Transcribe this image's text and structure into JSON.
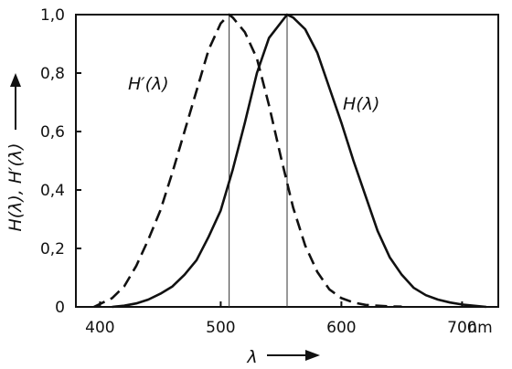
{
  "chart_data": {
    "type": "line",
    "xlabel": "λ",
    "ylabel": "H(λ), H′(λ)",
    "x_unit": "nm",
    "xlim": [
      380,
      730
    ],
    "ylim": [
      0,
      1.0
    ],
    "x_ticks": [
      400,
      500,
      600,
      700
    ],
    "y_ticks": [
      0,
      0.2,
      0.4,
      0.6,
      0.8,
      1.0
    ],
    "x_tick_labels": [
      "400",
      "500",
      "600",
      "700"
    ],
    "y_tick_labels": [
      "0",
      "0,2",
      "0,4",
      "0,6",
      "0,8",
      "1,0"
    ],
    "reference_lines_x": [
      507,
      555
    ],
    "grid": false,
    "series": [
      {
        "name": "H′(λ)",
        "style": "dashed",
        "color": "#111111",
        "x": [
          395,
          400,
          410,
          420,
          430,
          440,
          450,
          460,
          470,
          480,
          490,
          500,
          507,
          510,
          520,
          530,
          540,
          550,
          560,
          570,
          580,
          590,
          600,
          610,
          620,
          630,
          640,
          650
        ],
        "y": [
          0.0,
          0.01,
          0.03,
          0.07,
          0.14,
          0.23,
          0.33,
          0.46,
          0.6,
          0.74,
          0.88,
          0.97,
          1.0,
          0.99,
          0.94,
          0.85,
          0.69,
          0.51,
          0.34,
          0.21,
          0.12,
          0.06,
          0.03,
          0.015,
          0.007,
          0.004,
          0.002,
          0.001
        ]
      },
      {
        "name": "H(λ)",
        "style": "solid",
        "color": "#111111",
        "x": [
          410,
          420,
          430,
          440,
          450,
          460,
          470,
          480,
          490,
          500,
          510,
          520,
          530,
          540,
          555,
          560,
          570,
          580,
          590,
          600,
          610,
          620,
          630,
          640,
          650,
          660,
          670,
          680,
          690,
          700,
          720
        ],
        "y": [
          0.0,
          0.004,
          0.012,
          0.025,
          0.045,
          0.07,
          0.11,
          0.16,
          0.24,
          0.33,
          0.47,
          0.63,
          0.8,
          0.92,
          1.0,
          0.99,
          0.95,
          0.87,
          0.75,
          0.63,
          0.5,
          0.38,
          0.26,
          0.17,
          0.11,
          0.065,
          0.04,
          0.025,
          0.015,
          0.008,
          0.0
        ]
      }
    ]
  },
  "labels": {
    "series_dashed": "H′(λ)",
    "series_solid": "H(λ)",
    "x_axis": "λ",
    "y_axis": "H(λ), H′(λ)",
    "x_unit": "nm"
  }
}
